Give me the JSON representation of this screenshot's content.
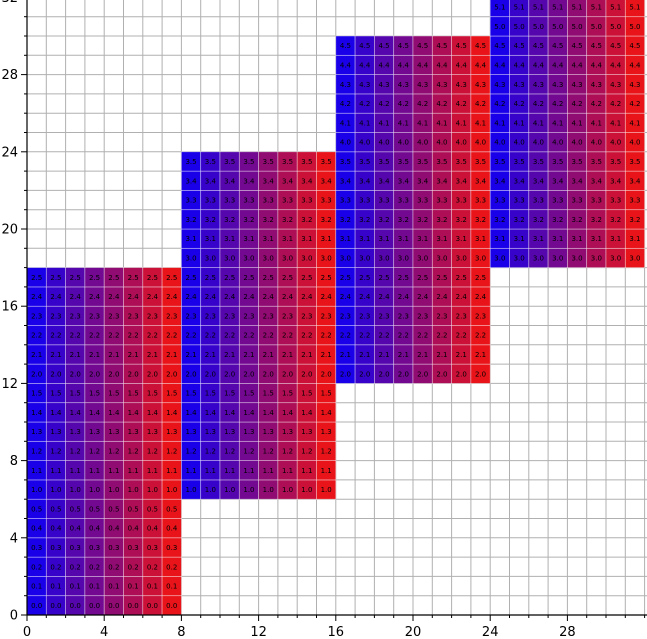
{
  "chart_data": {
    "type": "heatmap",
    "title": "",
    "xlabel": "",
    "ylabel": "",
    "xlim": [
      0,
      32
    ],
    "ylim": [
      0,
      36
    ],
    "x_ticks": [
      0,
      4,
      8,
      12,
      16,
      20,
      24,
      28
    ],
    "y_ticks": [
      0,
      4,
      8,
      12,
      16,
      20,
      24,
      28,
      32
    ],
    "grid": true,
    "color_gradient": {
      "left": "#1a00e8",
      "right": "#e8141a"
    },
    "cell_label_format": "block.row",
    "column_blocks": [
      {
        "x_start": 0,
        "x_end": 8,
        "y_start": 0,
        "y_end": 18
      },
      {
        "x_start": 8,
        "x_end": 16,
        "y_start": 6,
        "y_end": 24
      },
      {
        "x_start": 16,
        "x_end": 24,
        "y_start": 12,
        "y_end": 30
      },
      {
        "x_start": 24,
        "x_end": 32,
        "y_start": 18,
        "y_end": 36
      }
    ]
  }
}
